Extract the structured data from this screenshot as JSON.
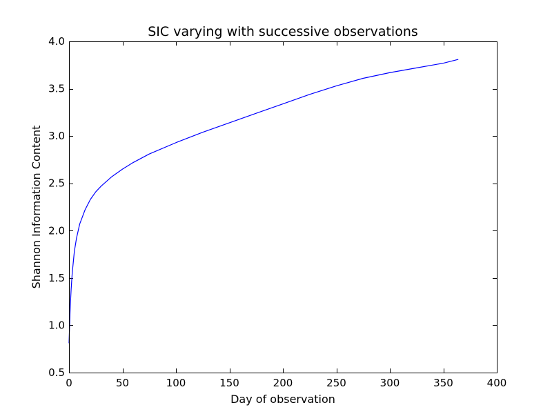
{
  "chart_data": {
    "type": "line",
    "title": "SIC varying with successive observations",
    "xlabel": "Day of observation",
    "ylabel": "Shannon Information Content",
    "xlim": [
      0,
      400
    ],
    "ylim": [
      0.5,
      4.0
    ],
    "x_ticks": [
      0,
      50,
      100,
      150,
      200,
      250,
      300,
      350,
      400
    ],
    "x_tick_labels": [
      "0",
      "50",
      "100",
      "150",
      "200",
      "250",
      "300",
      "350",
      "400"
    ],
    "y_ticks": [
      0.5,
      1.0,
      1.5,
      2.0,
      2.5,
      3.0,
      3.5,
      4.0
    ],
    "y_tick_labels": [
      "0.5",
      "1.0",
      "1.5",
      "2.0",
      "2.5",
      "3.0",
      "3.5",
      "4.0"
    ],
    "grid": false,
    "series": [
      {
        "color": "#0000ff",
        "x": [
          0,
          1,
          2,
          3,
          5,
          7,
          10,
          15,
          20,
          25,
          30,
          40,
          50,
          60,
          75,
          100,
          125,
          150,
          175,
          200,
          225,
          250,
          275,
          300,
          325,
          350,
          364
        ],
        "y": [
          0.81,
          1.15,
          1.38,
          1.55,
          1.78,
          1.92,
          2.07,
          2.22,
          2.33,
          2.41,
          2.47,
          2.57,
          2.65,
          2.72,
          2.81,
          2.93,
          3.04,
          3.14,
          3.24,
          3.34,
          3.44,
          3.53,
          3.61,
          3.67,
          3.72,
          3.77,
          3.81
        ]
      }
    ]
  }
}
